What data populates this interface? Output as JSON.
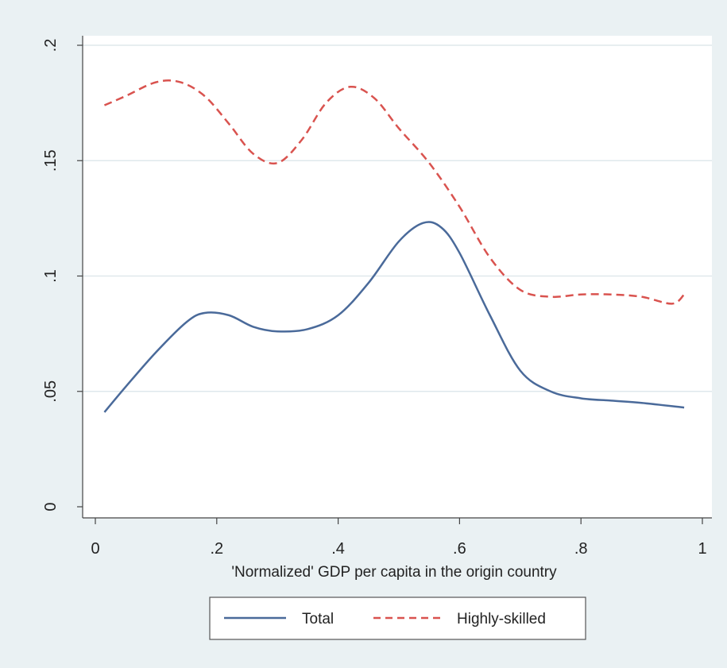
{
  "chart_data": {
    "type": "line",
    "title": "",
    "xlabel": "'Normalized' GDP per capita in the origin country",
    "ylabel": "",
    "xlim": [
      0,
      1
    ],
    "ylim": [
      0,
      0.2
    ],
    "x_ticks": [
      0,
      0.2,
      0.4,
      0.6,
      0.8,
      1
    ],
    "x_tick_labels": [
      "0",
      ".2",
      ".4",
      ".6",
      ".8",
      "1"
    ],
    "y_ticks": [
      0,
      0.05,
      0.1,
      0.15,
      0.2
    ],
    "y_tick_labels": [
      "0",
      ".05",
      ".1",
      ".15",
      ".2"
    ],
    "grid": true,
    "legend_position": "bottom",
    "series": [
      {
        "name": "Total",
        "color": "#4a6a9a",
        "style": "solid",
        "x": [
          0.015,
          0.05,
          0.1,
          0.15,
          0.18,
          0.22,
          0.26,
          0.3,
          0.35,
          0.4,
          0.45,
          0.5,
          0.54,
          0.57,
          0.6,
          0.65,
          0.7,
          0.75,
          0.8,
          0.85,
          0.9,
          0.97
        ],
        "y": [
          0.041,
          0.052,
          0.067,
          0.08,
          0.084,
          0.083,
          0.078,
          0.076,
          0.077,
          0.083,
          0.097,
          0.115,
          0.123,
          0.121,
          0.11,
          0.083,
          0.059,
          0.05,
          0.047,
          0.046,
          0.045,
          0.043
        ]
      },
      {
        "name": "Highly-skilled",
        "color": "#d9534f",
        "style": "dashed",
        "x": [
          0.015,
          0.05,
          0.1,
          0.14,
          0.18,
          0.22,
          0.26,
          0.3,
          0.34,
          0.38,
          0.42,
          0.46,
          0.5,
          0.55,
          0.6,
          0.65,
          0.7,
          0.75,
          0.8,
          0.85,
          0.9,
          0.95,
          0.97
        ],
        "y": [
          0.174,
          0.178,
          0.184,
          0.184,
          0.178,
          0.166,
          0.153,
          0.149,
          0.159,
          0.175,
          0.182,
          0.177,
          0.164,
          0.149,
          0.13,
          0.108,
          0.094,
          0.091,
          0.092,
          0.092,
          0.091,
          0.088,
          0.092
        ]
      }
    ]
  }
}
